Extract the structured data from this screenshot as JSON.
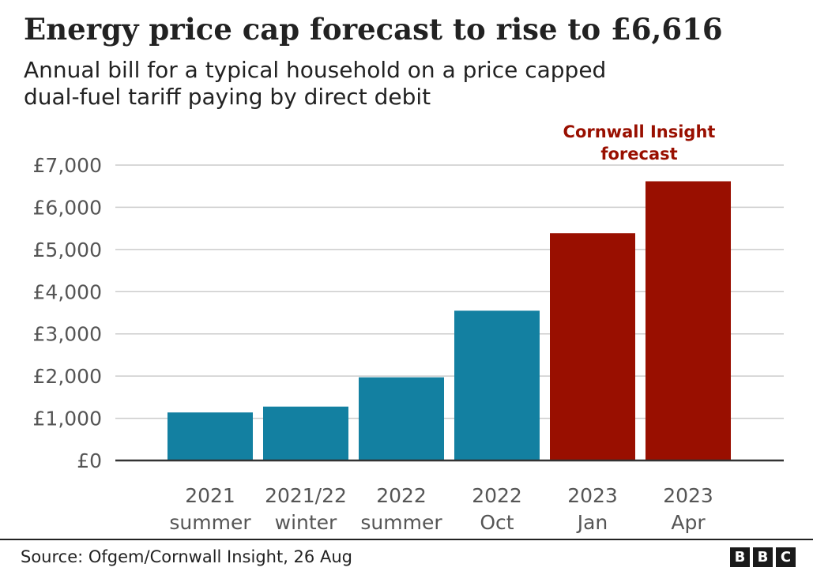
{
  "chart_data": {
    "type": "bar",
    "title": "Energy price cap forecast to rise to £6,616",
    "subtitle": "Annual bill for a typical household on a price capped\ndual-fuel tariff paying by direct debit",
    "categories": [
      [
        "2021",
        "summer"
      ],
      [
        "2021/22",
        "winter"
      ],
      [
        "2022",
        "summer"
      ],
      [
        "2022",
        "Oct"
      ],
      [
        "2023",
        "Jan"
      ],
      [
        "2023",
        "Apr"
      ]
    ],
    "values": [
      1138,
      1277,
      1971,
      3549,
      5386,
      6616
    ],
    "forecast": [
      false,
      false,
      false,
      false,
      true,
      true
    ],
    "colors": {
      "actual": "#1380a1",
      "forecast": "#990f00",
      "annotation": "#990f00"
    },
    "annotation": [
      "Cornwall Insight",
      "forecast"
    ],
    "ylim": [
      0,
      7000
    ],
    "yticks": [
      0,
      1000,
      2000,
      3000,
      4000,
      5000,
      6000,
      7000
    ],
    "ytick_labels": [
      "£0",
      "£1,000",
      "£2,000",
      "£3,000",
      "£4,000",
      "£5,000",
      "£6,000",
      "£7,000"
    ],
    "grid": true,
    "xlabel": "",
    "ylabel": ""
  },
  "footer": {
    "source": "Source: Ofgem/Cornwall Insight, 26 Aug",
    "logo_letters": [
      "B",
      "B",
      "C"
    ]
  }
}
